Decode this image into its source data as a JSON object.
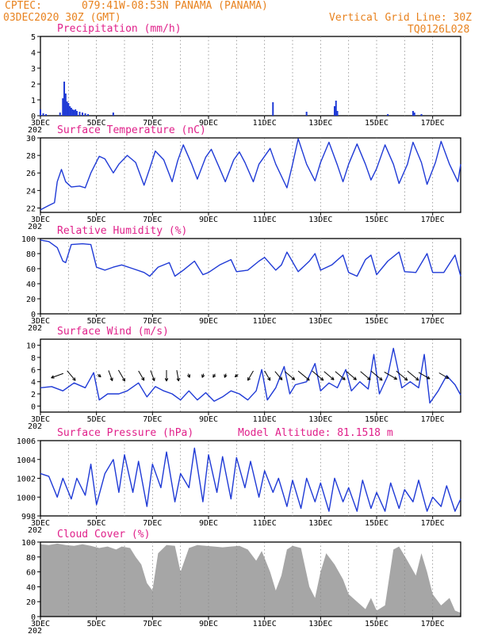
{
  "header": {
    "line1_left": "CPTEC:",
    "location": "079:41W-08:53N  PANAMA (PANAMA)",
    "line2_left": "03DEC2020 30Z (GMT)",
    "grid_note": "Vertical Grid Line: 30Z",
    "run_code": "TQ0126L028"
  },
  "colors": {
    "series": "#1f3ad6",
    "header": "#e8821e",
    "title": "#e0208a",
    "bars": "#a6a6a6",
    "arrows": "#000000"
  },
  "x_axis": {
    "tick_labels": [
      "3DEC",
      "5DEC",
      "7DEC",
      "9DEC",
      "11DEC",
      "13DEC",
      "15DEC",
      "17DEC"
    ],
    "corner_label": "202",
    "tick_days": [
      3,
      5,
      7,
      9,
      11,
      13,
      15,
      17
    ],
    "range_days": [
      3,
      18
    ]
  },
  "chart_data": [
    {
      "type": "bar",
      "title": "Precipitation (mm/h)",
      "ylim": [
        0,
        5
      ],
      "yticks": [
        "0",
        "1",
        "2",
        "3",
        "4",
        "5"
      ],
      "x": [
        3.0,
        3.1,
        3.2,
        3.7,
        3.8,
        3.85,
        3.9,
        3.95,
        4.0,
        4.05,
        4.1,
        4.15,
        4.2,
        4.25,
        4.3,
        4.4,
        4.5,
        4.6,
        4.7,
        5.6,
        11.3,
        12.5,
        13.5,
        13.55,
        13.6,
        15.4,
        16.3,
        16.35,
        16.6
      ],
      "values": [
        0.4,
        0.15,
        0.1,
        0.2,
        1.1,
        2.15,
        1.4,
        0.9,
        0.8,
        0.6,
        0.5,
        0.4,
        0.35,
        0.4,
        0.3,
        0.25,
        0.2,
        0.15,
        0.1,
        0.2,
        0.85,
        0.25,
        0.6,
        0.95,
        0.3,
        0.1,
        0.3,
        0.2,
        0.1
      ]
    },
    {
      "type": "line",
      "title": "Surface Temperature (nC)",
      "ylim": [
        21.5,
        30
      ],
      "yticks": [
        "22",
        "24",
        "26",
        "28",
        "30"
      ],
      "x": [
        3.0,
        3.3,
        3.5,
        3.6,
        3.75,
        3.9,
        4.1,
        4.4,
        4.6,
        4.8,
        5.1,
        5.3,
        5.6,
        5.8,
        6.1,
        6.4,
        6.7,
        6.9,
        7.1,
        7.4,
        7.7,
        7.9,
        8.1,
        8.4,
        8.6,
        8.9,
        9.1,
        9.4,
        9.6,
        9.9,
        10.1,
        10.3,
        10.6,
        10.8,
        11.2,
        11.4,
        11.8,
        12.0,
        12.2,
        12.5,
        12.8,
        13.0,
        13.3,
        13.6,
        13.8,
        14.0,
        14.3,
        14.6,
        14.8,
        15.0,
        15.3,
        15.6,
        15.8,
        16.1,
        16.3,
        16.6,
        16.8,
        17.1,
        17.3,
        17.6,
        17.9,
        18.0
      ],
      "values": [
        21.8,
        22.3,
        22.6,
        25.0,
        26.4,
        25.0,
        24.4,
        24.5,
        24.3,
        26.0,
        27.9,
        27.6,
        26.0,
        27.0,
        28.0,
        27.2,
        24.6,
        26.5,
        28.5,
        27.5,
        25.0,
        27.4,
        29.2,
        27.0,
        25.3,
        27.8,
        28.7,
        26.5,
        25.0,
        27.5,
        28.4,
        27.2,
        25.0,
        27.0,
        28.8,
        27.0,
        24.3,
        27.0,
        29.9,
        27.0,
        25.1,
        27.2,
        29.5,
        26.9,
        25.0,
        27.0,
        29.3,
        27.0,
        25.2,
        26.5,
        29.2,
        27.0,
        24.8,
        27.0,
        29.5,
        27.2,
        24.7,
        27.2,
        29.6,
        27.0,
        25.0,
        27.0
      ]
    },
    {
      "type": "line",
      "title": "Relative Humidity (%)",
      "ylim": [
        0,
        100
      ],
      "yticks": [
        "0",
        "20",
        "40",
        "60",
        "80",
        "100"
      ],
      "x": [
        3.0,
        3.3,
        3.6,
        3.8,
        3.9,
        4.1,
        4.5,
        4.8,
        5.0,
        5.3,
        5.6,
        5.9,
        6.3,
        6.7,
        6.9,
        7.2,
        7.6,
        7.8,
        8.1,
        8.5,
        8.8,
        9.0,
        9.4,
        9.8,
        10.0,
        10.4,
        10.8,
        11.0,
        11.4,
        11.6,
        11.8,
        12.2,
        12.6,
        12.8,
        13.0,
        13.4,
        13.8,
        14.0,
        14.3,
        14.6,
        14.8,
        15.0,
        15.4,
        15.8,
        16.0,
        16.4,
        16.8,
        17.0,
        17.4,
        17.8,
        18.0
      ],
      "values": [
        98,
        96,
        88,
        70,
        68,
        92,
        93,
        92,
        62,
        58,
        62,
        65,
        60,
        55,
        50,
        62,
        68,
        50,
        58,
        70,
        52,
        55,
        65,
        72,
        56,
        58,
        70,
        75,
        58,
        65,
        82,
        56,
        70,
        80,
        58,
        65,
        78,
        55,
        50,
        72,
        78,
        52,
        70,
        82,
        56,
        55,
        80,
        55,
        55,
        78,
        50
      ]
    },
    {
      "type": "line",
      "title": "Surface Wind (m/s)",
      "ylim": [
        -1,
        11
      ],
      "yticks": [
        "0",
        "2",
        "4",
        "6",
        "8",
        "10"
      ],
      "x": [
        3.0,
        3.4,
        3.8,
        4.2,
        4.6,
        4.9,
        5.1,
        5.4,
        5.8,
        6.1,
        6.5,
        6.8,
        7.1,
        7.4,
        7.7,
        8.0,
        8.3,
        8.6,
        8.9,
        9.2,
        9.5,
        9.8,
        10.1,
        10.4,
        10.7,
        10.9,
        11.1,
        11.4,
        11.7,
        11.9,
        12.1,
        12.5,
        12.8,
        13.0,
        13.3,
        13.6,
        13.9,
        14.1,
        14.4,
        14.7,
        14.9,
        15.1,
        15.4,
        15.6,
        15.9,
        16.2,
        16.5,
        16.7,
        16.9,
        17.2,
        17.5,
        17.8,
        18.0
      ],
      "values": [
        3.0,
        3.2,
        2.5,
        3.8,
        3.0,
        5.5,
        1.0,
        2.0,
        2.0,
        2.5,
        3.8,
        1.5,
        3.2,
        2.5,
        2.0,
        1.0,
        2.5,
        1.0,
        2.2,
        0.8,
        1.5,
        2.5,
        2.0,
        1.0,
        2.5,
        6.0,
        1.0,
        3.0,
        6.5,
        2.0,
        3.5,
        4.0,
        7.0,
        2.5,
        3.8,
        3.0,
        6.0,
        2.5,
        4.0,
        2.8,
        8.5,
        2.0,
        5.0,
        9.5,
        3.0,
        4.0,
        3.0,
        8.5,
        0.5,
        2.5,
        5.0,
        3.5,
        1.8
      ],
      "arrows": {
        "x": [
          3.6,
          4.1,
          5.1,
          5.5,
          5.9,
          6.6,
          7.0,
          7.5,
          7.9,
          8.3,
          8.8,
          9.2,
          9.6,
          10.0,
          10.5,
          11.1,
          11.5,
          11.9,
          12.4,
          12.9,
          13.3,
          13.7,
          14.1,
          14.6,
          15.0,
          15.5,
          15.9,
          16.3,
          16.7,
          17.4
        ],
        "dir_deg": [
          200,
          310,
          320,
          290,
          300,
          300,
          290,
          270,
          280,
          290,
          250,
          240,
          250,
          220,
          240,
          300,
          310,
          320,
          320,
          320,
          320,
          320,
          320,
          320,
          320,
          330,
          320,
          320,
          330,
          330
        ],
        "speed": [
          6,
          6,
          1,
          5,
          6,
          5,
          5,
          5,
          5,
          1,
          1,
          1,
          1,
          1,
          5,
          5,
          5,
          6,
          7,
          7,
          6,
          6,
          6,
          6,
          7,
          7,
          7,
          7,
          6,
          5
        ]
      }
    },
    {
      "type": "line",
      "title": "Surface Pressure (hPa)",
      "model_altitude": "Model Altitude: 81.1518 m",
      "ylim": [
        998,
        1006
      ],
      "yticks": [
        "998",
        "1000",
        "1002",
        "1004",
        "1006"
      ],
      "x": [
        3.0,
        3.3,
        3.6,
        3.8,
        4.1,
        4.3,
        4.6,
        4.8,
        5.0,
        5.3,
        5.6,
        5.8,
        6.0,
        6.3,
        6.5,
        6.8,
        7.0,
        7.3,
        7.5,
        7.8,
        8.0,
        8.3,
        8.5,
        8.8,
        9.0,
        9.3,
        9.5,
        9.8,
        10.0,
        10.3,
        10.5,
        10.8,
        11.0,
        11.3,
        11.5,
        11.8,
        12.0,
        12.3,
        12.5,
        12.8,
        13.0,
        13.3,
        13.5,
        13.8,
        14.0,
        14.3,
        14.5,
        14.8,
        15.0,
        15.3,
        15.5,
        15.8,
        16.0,
        16.3,
        16.5,
        16.8,
        17.0,
        17.3,
        17.5,
        17.8,
        18.0
      ],
      "values": [
        1002.5,
        1002.2,
        1000.0,
        1002.0,
        999.8,
        1002.0,
        1000.2,
        1003.5,
        999.2,
        1002.5,
        1004.0,
        1000.5,
        1004.5,
        1000.5,
        1003.8,
        999.0,
        1003.5,
        1001.0,
        1004.8,
        999.5,
        1002.5,
        1001.0,
        1005.2,
        999.5,
        1004.5,
        1000.5,
        1004.3,
        999.8,
        1004.2,
        1001.0,
        1003.8,
        1000.0,
        1002.8,
        1000.5,
        1002.0,
        999.0,
        1001.8,
        998.8,
        1002.0,
        999.5,
        1001.5,
        998.5,
        1002.0,
        999.5,
        1001.0,
        998.5,
        1001.8,
        998.8,
        1000.5,
        998.5,
        1001.5,
        998.8,
        1000.8,
        999.5,
        1001.8,
        998.5,
        1000.0,
        999.0,
        1001.2,
        998.5,
        999.8
      ]
    },
    {
      "type": "area",
      "title": "Cloud Cover (%)",
      "ylim": [
        0,
        100
      ],
      "yticks": [
        "0",
        "20",
        "40",
        "60",
        "80",
        "100"
      ],
      "x": [
        3.0,
        3.3,
        3.6,
        3.9,
        4.2,
        4.5,
        4.8,
        5.1,
        5.4,
        5.7,
        5.9,
        6.2,
        6.4,
        6.6,
        6.8,
        7.0,
        7.2,
        7.5,
        7.8,
        8.0,
        8.3,
        8.6,
        8.9,
        9.2,
        9.5,
        9.8,
        10.1,
        10.4,
        10.7,
        10.9,
        11.2,
        11.4,
        11.6,
        11.8,
        12.0,
        12.3,
        12.6,
        12.8,
        13.0,
        13.2,
        13.5,
        13.8,
        14.0,
        14.3,
        14.6,
        14.8,
        15.0,
        15.3,
        15.6,
        15.8,
        16.1,
        16.4,
        16.6,
        16.8,
        17.0,
        17.3,
        17.6,
        17.8,
        18.0
      ],
      "values": [
        97,
        96,
        98,
        96,
        95,
        97,
        95,
        92,
        94,
        90,
        94,
        92,
        80,
        70,
        45,
        35,
        85,
        96,
        95,
        60,
        92,
        96,
        95,
        94,
        93,
        94,
        95,
        90,
        75,
        88,
        60,
        35,
        55,
        90,
        95,
        92,
        40,
        25,
        60,
        85,
        70,
        50,
        30,
        20,
        10,
        25,
        8,
        15,
        90,
        94,
        75,
        55,
        85,
        60,
        30,
        15,
        25,
        8,
        5
      ]
    }
  ]
}
